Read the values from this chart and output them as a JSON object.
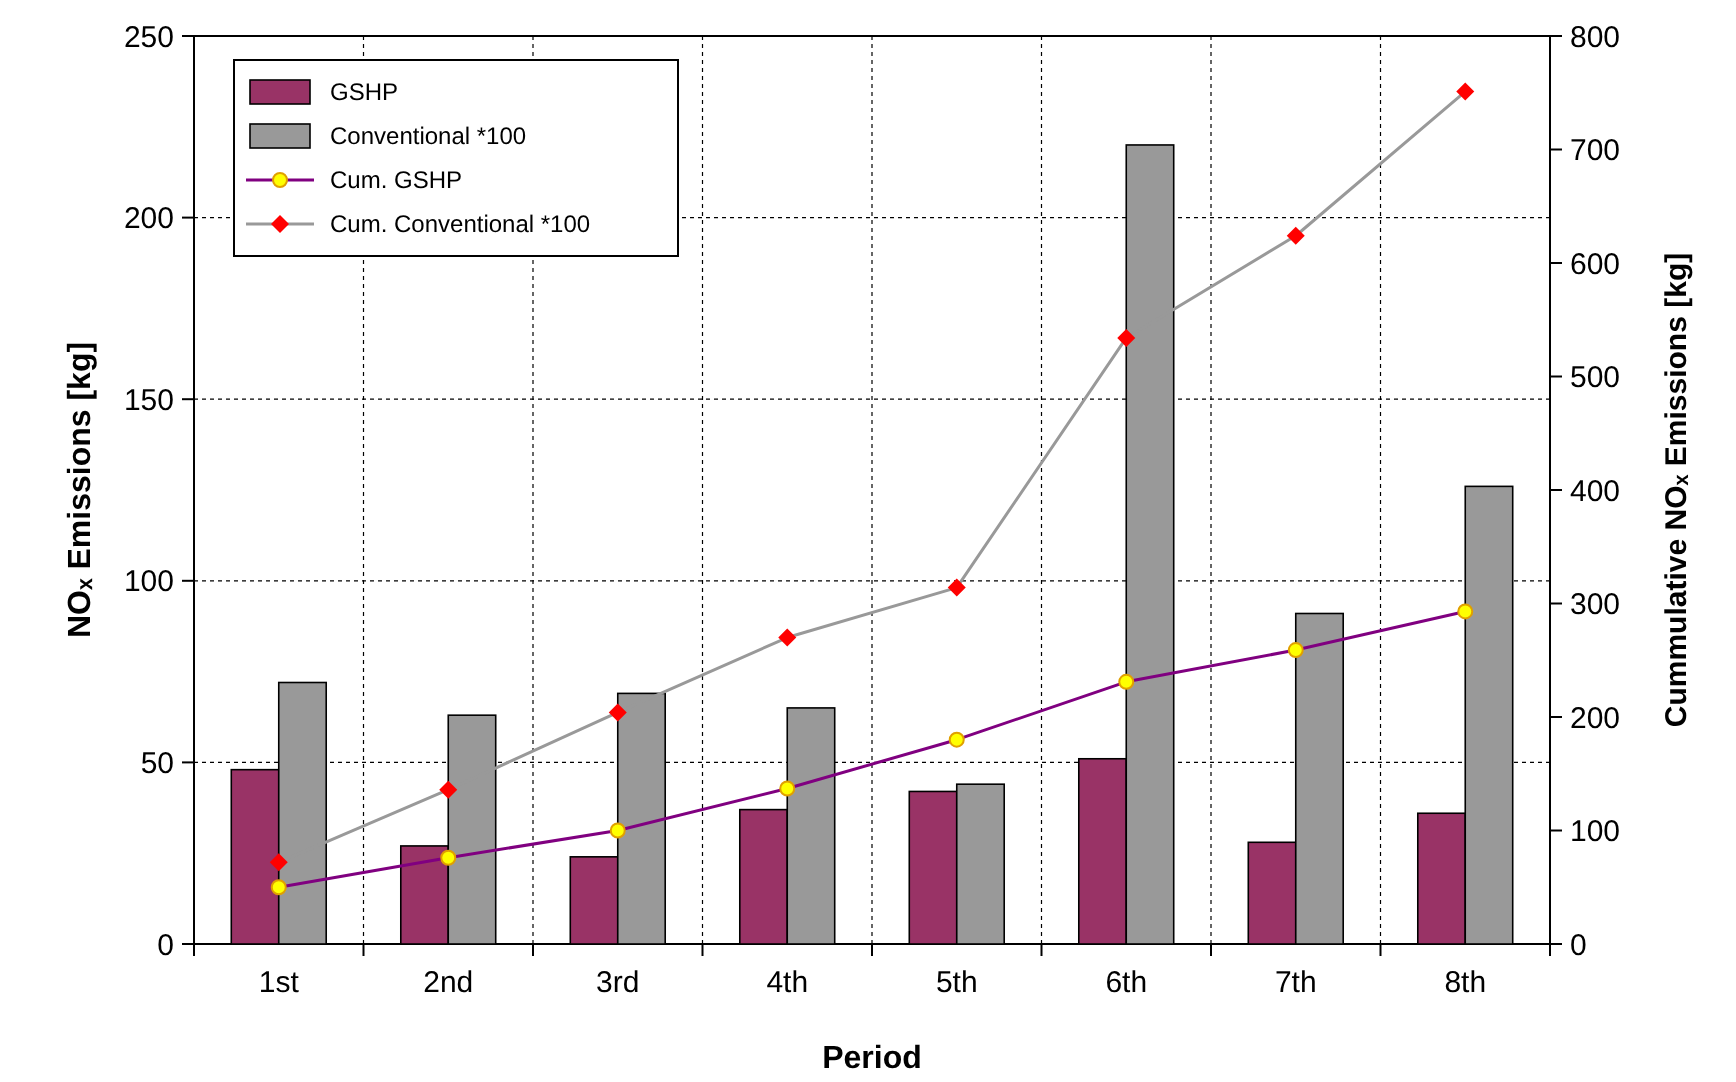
{
  "chart_data": {
    "type": "bar",
    "xlabel": "Period",
    "ylabel": "NOₓ Emissions [kg]",
    "y2label": "Cummulative NOₓ Emissions [kg]",
    "categories": [
      "1st",
      "2nd",
      "3rd",
      "4th",
      "5th",
      "6th",
      "7th",
      "8th"
    ],
    "series": [
      {
        "name": "GSHP",
        "color": "#993366",
        "values": [
          48,
          27,
          24,
          37,
          42,
          51,
          28,
          36
        ]
      },
      {
        "name": "Conventional *100",
        "color": "#999999",
        "values": [
          72,
          63,
          69,
          65,
          44,
          220,
          91,
          126
        ]
      },
      {
        "name": "Cum. GSHP",
        "type": "line",
        "axis": "y2",
        "color": "#800080",
        "marker": "circle",
        "values": [
          50,
          76,
          100,
          137,
          180,
          231,
          259,
          293
        ]
      },
      {
        "name": "Cum. Conventional *100",
        "type": "line",
        "axis": "y2",
        "color": "#999999",
        "marker": "diamond",
        "values": [
          72,
          136,
          204,
          270,
          314,
          534,
          624,
          751
        ]
      }
    ],
    "ylim": [
      0,
      250
    ],
    "yticks": [
      0,
      50,
      100,
      150,
      200,
      250
    ],
    "y2lim": [
      0,
      800
    ],
    "y2ticks": [
      0,
      100,
      200,
      300,
      400,
      500,
      600,
      700,
      800
    ],
    "grid": true,
    "legend": "top left",
    "line_style": "solid"
  }
}
